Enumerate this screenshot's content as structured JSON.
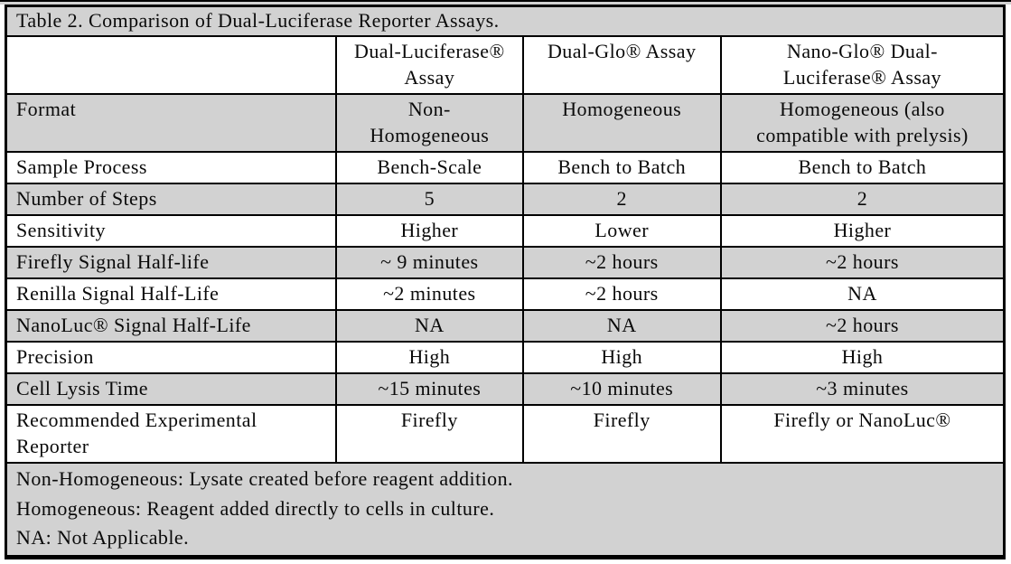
{
  "document": {
    "title": "Table 2. Comparison of Dual-Luciferase Reporter Assays."
  },
  "table": {
    "columns": [
      "",
      "Dual-Luciferase®\nAssay",
      "Dual-Glo® Assay",
      "Nano-Glo® Dual-\nLuciferase® Assay"
    ],
    "rows": [
      {
        "label": "Format",
        "values": [
          "Non-\nHomogeneous",
          "Homogeneous",
          "Homogeneous (also\ncompatible with prelysis)"
        ]
      },
      {
        "label": "Sample Process",
        "values": [
          "Bench-Scale",
          "Bench to Batch",
          "Bench to Batch"
        ]
      },
      {
        "label": "Number of Steps",
        "values": [
          "5",
          "2",
          "2"
        ]
      },
      {
        "label": "Sensitivity",
        "values": [
          "Higher",
          "Lower",
          "Higher"
        ]
      },
      {
        "label": "Firefly Signal Half-life",
        "values": [
          "~ 9 minutes",
          "~2 hours",
          "~2 hours"
        ]
      },
      {
        "label": "Renilla Signal Half-Life",
        "values": [
          "~2 minutes",
          "~2 hours",
          "NA"
        ]
      },
      {
        "label": "NanoLuc® Signal Half-Life",
        "values": [
          "NA",
          "NA",
          "~2 hours"
        ]
      },
      {
        "label": "Precision",
        "values": [
          "High",
          "High",
          "High"
        ]
      },
      {
        "label": "Cell Lysis Time",
        "values": [
          "~15 minutes",
          "~10 minutes",
          "~3 minutes"
        ]
      },
      {
        "label": "Recommended Experimental\nReporter",
        "values": [
          "Firefly",
          "Firefly",
          "Firefly or NanoLuc®"
        ]
      }
    ],
    "footnotes": "Non-Homogeneous: Lysate created before reagent addition.\nHomogeneous: Reagent added directly to cells in culture.\nNA: Not Applicable."
  },
  "colors": {
    "row_shade": "#d2d2d2",
    "border": "#000000",
    "page_background": "#ffffff"
  }
}
